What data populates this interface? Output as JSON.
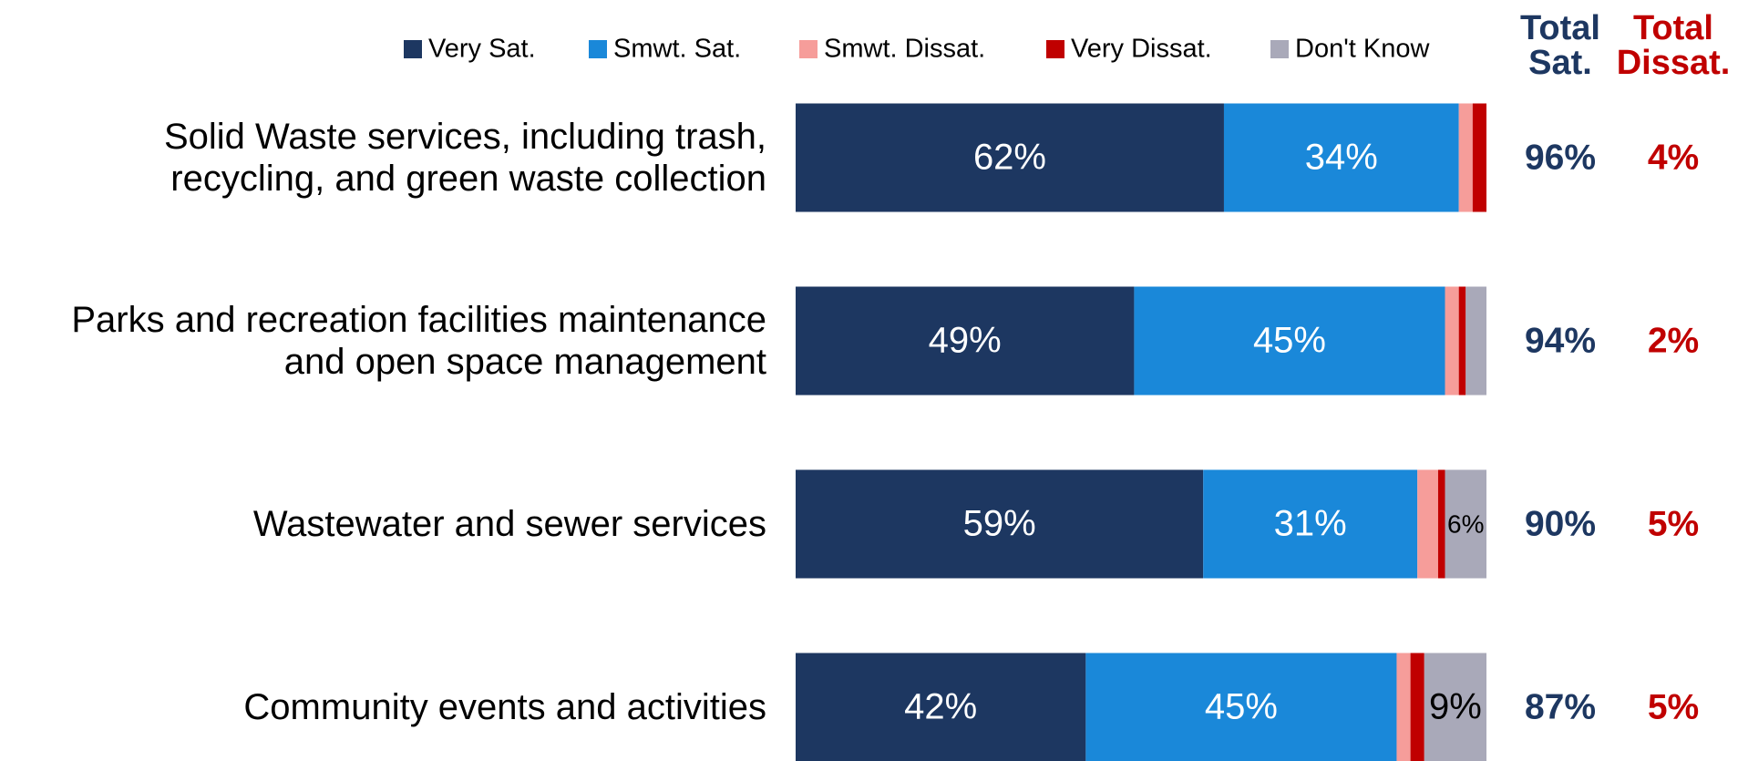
{
  "chart_data": {
    "type": "stacked-bar-horizontal",
    "categories": [
      "Solid Waste services, including trash,\nrecycling, and green waste collection",
      "Parks and recreation facilities maintenance\nand open space management",
      "Wastewater and sewer services",
      "Community events and activities"
    ],
    "series": [
      {
        "name": "Very Sat.",
        "color": "#1d3761",
        "values": [
          62,
          49,
          59,
          42
        ],
        "value_labels": [
          "62%",
          "49%",
          "59%",
          "42%"
        ]
      },
      {
        "name": "Smwt. Sat.",
        "color": "#1a88d9",
        "values": [
          34,
          45,
          31,
          45
        ],
        "value_labels": [
          "34%",
          "45%",
          "31%",
          "45%"
        ]
      },
      {
        "name": "Smwt. Dissat.",
        "color": "#f69d9a",
        "values": [
          2,
          2,
          3,
          2
        ],
        "value_labels": [
          null,
          null,
          null,
          null
        ]
      },
      {
        "name": "Very Dissat.",
        "color": "#c00000",
        "values": [
          2,
          1,
          1,
          2
        ],
        "value_labels": [
          null,
          null,
          null,
          null
        ]
      },
      {
        "name": "Don't Know",
        "color": "#a9a9b9",
        "values": [
          0,
          3,
          6,
          9
        ],
        "value_labels": [
          null,
          null,
          "6%",
          "9%"
        ]
      }
    ],
    "xlim": [
      0,
      100
    ],
    "totals": [
      {
        "name": "Total\nSat.",
        "color": "#1d3761",
        "values": [
          96,
          94,
          90,
          87
        ],
        "value_labels": [
          "96%",
          "94%",
          "90%",
          "87%"
        ]
      },
      {
        "name": "Total\nDissat.",
        "color": "#c00000",
        "values": [
          4,
          2,
          5,
          5
        ],
        "value_labels": [
          "4%",
          "2%",
          "5%",
          "5%"
        ]
      }
    ]
  }
}
